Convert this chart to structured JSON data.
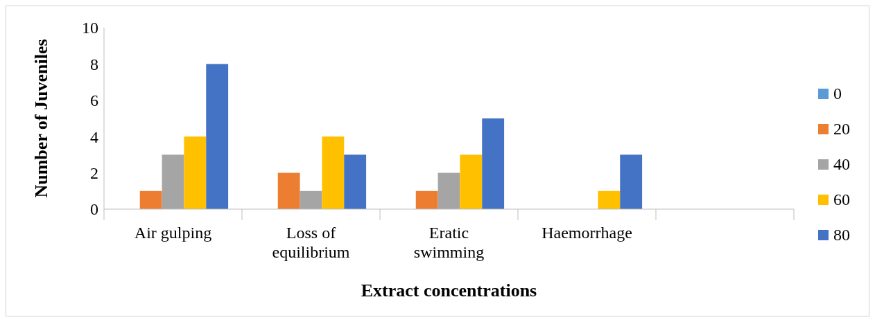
{
  "chart_data": {
    "type": "bar",
    "xlabel": "Extract concentrations",
    "ylabel": "Number of Juveniles",
    "categories": [
      "Air gulping",
      "Loss of equilibrium",
      "Eratic swimming",
      "Haemorrhage",
      null
    ],
    "series": [
      {
        "name": "0",
        "color": "#5b9bd5",
        "values": [
          0,
          0,
          0,
          0,
          null
        ]
      },
      {
        "name": "20",
        "color": "#ed7d31",
        "values": [
          1,
          2,
          1,
          0,
          null
        ]
      },
      {
        "name": "40",
        "color": "#a5a5a5",
        "values": [
          3,
          1,
          2,
          0,
          null
        ]
      },
      {
        "name": "60",
        "color": "#ffc000",
        "values": [
          4,
          4,
          3,
          1,
          null
        ]
      },
      {
        "name": "80",
        "color": "#4472c4",
        "values": [
          8,
          3,
          5,
          3,
          null
        ]
      }
    ],
    "ylim": [
      0,
      10
    ],
    "yticks": [
      0,
      2,
      4,
      6,
      8,
      10
    ],
    "grid": false,
    "legend": "right"
  }
}
